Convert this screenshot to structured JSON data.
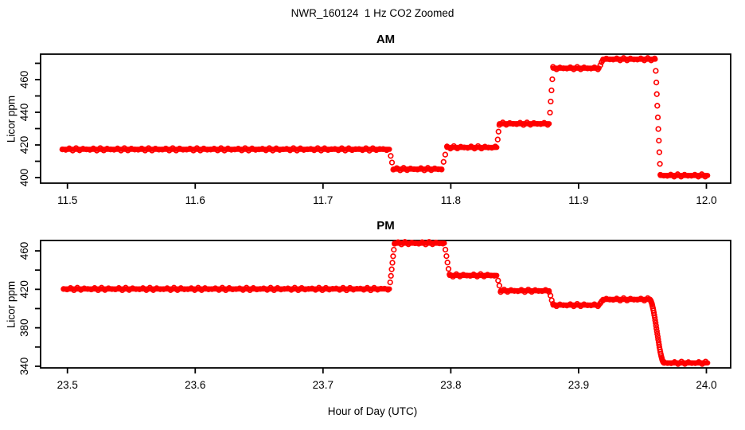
{
  "title": "NWR_160124  1 Hz CO2 Zoomed",
  "xlabel": "Hour of Day (UTC)",
  "background_color": "#ffffff",
  "axis_color": "#000000",
  "chart_data": [
    {
      "type": "scatter",
      "panel_title": "AM",
      "ylabel": "Licor ppm",
      "marker": "open-circle",
      "color": "#ff0000",
      "grid": false,
      "legend": null,
      "xlim": [
        11.479,
        12.019
      ],
      "ylim": [
        396.6,
        475.6
      ],
      "xticks": [
        {
          "v": 11.5,
          "label": "11.5"
        },
        {
          "v": 11.6,
          "label": "11.6"
        },
        {
          "v": 11.7,
          "label": "11.7"
        },
        {
          "v": 11.8,
          "label": "11.8"
        },
        {
          "v": 11.9,
          "label": "11.9"
        },
        {
          "v": 12.0,
          "label": "12.0"
        }
      ],
      "yticks_all": [
        400,
        410,
        420,
        430,
        440,
        450,
        460,
        470
      ],
      "yticks_labeled": [
        400,
        420,
        440,
        460
      ],
      "segments": [
        {
          "t0": 11.496,
          "t1": 11.752,
          "v": 417.3
        },
        {
          "t0": 11.755,
          "t1": 11.793,
          "v": 405.2
        },
        {
          "t0": 11.797,
          "t1": 11.836,
          "v": 418.5
        },
        {
          "t0": 11.838,
          "t1": 11.877,
          "v": 433.0
        },
        {
          "t0": 11.88,
          "t1": 11.916,
          "v": 467.0
        },
        {
          "t0": 11.919,
          "t1": 11.96,
          "v": 472.5
        },
        {
          "t0": 11.964,
          "t1": 12.001,
          "v": 401.3
        }
      ],
      "ramps": []
    },
    {
      "type": "scatter",
      "panel_title": "PM",
      "ylabel": "Licor ppm",
      "marker": "open-circle",
      "color": "#ff0000",
      "grid": false,
      "legend": null,
      "xlim": [
        23.479,
        24.019
      ],
      "ylim": [
        338.3,
        470.8
      ],
      "xticks": [
        {
          "v": 23.5,
          "label": "23.5"
        },
        {
          "v": 23.6,
          "label": "23.6"
        },
        {
          "v": 23.7,
          "label": "23.7"
        },
        {
          "v": 23.8,
          "label": "23.8"
        },
        {
          "v": 23.9,
          "label": "23.9"
        },
        {
          "v": 24.0,
          "label": "24.0"
        }
      ],
      "yticks_all": [
        340,
        360,
        380,
        400,
        420,
        440,
        460
      ],
      "yticks_labeled": [
        340,
        380,
        420,
        460
      ],
      "segments": [
        {
          "t0": 23.497,
          "t1": 23.752,
          "v": 420.4
        },
        {
          "t0": 23.756,
          "t1": 23.795,
          "v": 468.0
        },
        {
          "t0": 23.799,
          "t1": 23.836,
          "v": 434.5
        },
        {
          "t0": 23.839,
          "t1": 23.877,
          "v": 418.5
        },
        {
          "t0": 23.88,
          "t1": 23.916,
          "v": 403.6
        },
        {
          "t0": 23.919,
          "t1": 23.9555,
          "v": 409.5
        },
        {
          "t0": 23.967,
          "t1": 24.001,
          "v": 343.5
        }
      ],
      "ramps": [
        {
          "t0": 23.9555,
          "t1": 23.967,
          "v0": 409.5,
          "v1": 343.5,
          "shape": "scurve"
        }
      ]
    }
  ]
}
